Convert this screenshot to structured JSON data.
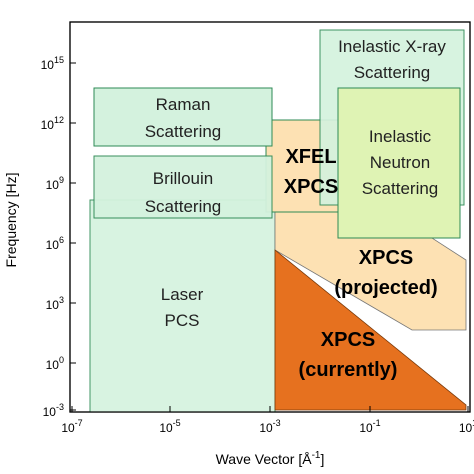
{
  "axes": {
    "x_title": "Wave Vector [Å",
    "x_title_sup": "-1",
    "x_title_close": "]",
    "y_title": "Frequency [Hz]",
    "x_ticks": [
      {
        "base": "10",
        "exp": "-7"
      },
      {
        "base": "10",
        "exp": "-5"
      },
      {
        "base": "10",
        "exp": "-3"
      },
      {
        "base": "10",
        "exp": "-1"
      },
      {
        "base": "10",
        "exp": "1"
      }
    ],
    "y_ticks": [
      {
        "base": "10",
        "exp": "15"
      },
      {
        "base": "10",
        "exp": "12"
      },
      {
        "base": "10",
        "exp": "9"
      },
      {
        "base": "10",
        "exp": "6"
      },
      {
        "base": "10",
        "exp": "3"
      },
      {
        "base": "10",
        "exp": "0"
      },
      {
        "base": "10",
        "exp": "-3"
      }
    ]
  },
  "regions": {
    "laser": {
      "line1": "Laser",
      "line2": "PCS"
    },
    "raman": {
      "line1": "Raman",
      "line2": "Scattering"
    },
    "brillouin": {
      "line1": "Brillouin",
      "line2": "Scattering"
    },
    "inelastic_xray": {
      "line1": "Inelastic X-ray",
      "line2": "Scattering"
    },
    "inelastic_neutron": {
      "line1": "Inelastic",
      "line2": "Neutron",
      "line3": "Scattering"
    },
    "xfel": {
      "line1": "XFEL",
      "line2": "XPCS"
    },
    "xpcs_projected": {
      "line1": "XPCS",
      "line2": "(projected)"
    },
    "xpcs_currently": {
      "line1": "XPCS",
      "line2": "(currently)"
    }
  },
  "colors": {
    "green_fill": "#d4f2de",
    "green_stroke": "#2e8a55",
    "neutron_fill": "#dff3b4",
    "peach": "#fde1b3",
    "orange": "#e6711f"
  }
}
